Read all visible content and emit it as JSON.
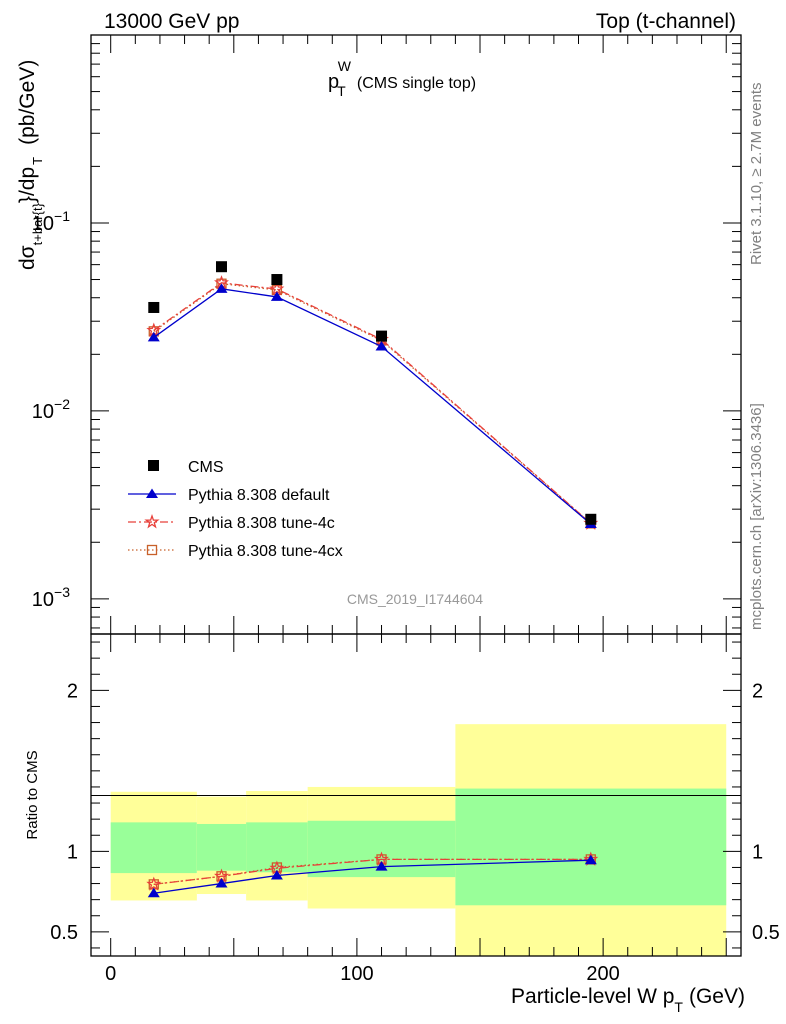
{
  "header": {
    "left": "13000 GeV pp",
    "right": "Top (t-channel)"
  },
  "side_labels": {
    "rivet": "Rivet 3.1.10, ≥ 2.7M events",
    "mcplots": "mcplots.cern.ch [arXiv:1306.3436]"
  },
  "chart_data": [
    {
      "type": "scatter",
      "panel": "main",
      "title": {
        "main": "p",
        "sub": "T",
        "sup": "W",
        "note": "(CMS single top)"
      },
      "ylabel": {
        "pre": "dσ",
        "sub1": "t+bar{t}",
        "mid": "}/dp",
        "sub2": "T",
        "post": "(pb/GeV)"
      },
      "yscale": "log",
      "ylim": [
        0.00065,
        1.0
      ],
      "xlim": [
        -8,
        256
      ],
      "y_ticks": [
        {
          "v": 0.1,
          "base": "10",
          "exp": "−1"
        },
        {
          "v": 0.01,
          "base": "10",
          "exp": "−2"
        },
        {
          "v": 0.001,
          "base": "10",
          "exp": "−3"
        }
      ],
      "watermark": "CMS_2019_I1744604",
      "legend_position": "lower-left",
      "series": [
        {
          "name": "CMS",
          "style": "data",
          "color": "#000000",
          "x": [
            17.5,
            45,
            67.5,
            110,
            195
          ],
          "y": [
            0.0355,
            0.0585,
            0.05,
            0.025,
            0.00265
          ]
        },
        {
          "name": "Pythia 8.308 default",
          "style": "triangle",
          "color": "#0000cc",
          "x": [
            17.5,
            45,
            67.5,
            110,
            195
          ],
          "y": [
            0.0246,
            0.0446,
            0.0404,
            0.022,
            0.0025
          ]
        },
        {
          "name": "Pythia 8.308 tune-4c",
          "style": "star",
          "color": "#e8403a",
          "x": [
            17.5,
            45,
            67.5,
            110,
            195
          ],
          "y": [
            0.0268,
            0.048,
            0.0445,
            0.024,
            0.00252
          ]
        },
        {
          "name": "Pythia 8.308 tune-4cx",
          "style": "square",
          "color": "#c8602a",
          "x": [
            17.5,
            45,
            67.5,
            110,
            195
          ],
          "y": [
            0.0265,
            0.0475,
            0.044,
            0.0237,
            0.00252
          ]
        }
      ]
    },
    {
      "type": "line",
      "panel": "ratio",
      "ylabel": "Ratio to CMS",
      "xlabel": {
        "pre": "Particle-level W p",
        "sub": "T",
        "post": "(GeV)"
      },
      "ylim": [
        0.35,
        2.35
      ],
      "xlim": [
        -8,
        256
      ],
      "x_ticks": [
        0,
        100,
        200
      ],
      "y_ticks": [
        {
          "v": 2,
          "label": "2"
        },
        {
          "v": 1,
          "label": "1"
        },
        {
          "v": 0.5,
          "label": "0.5"
        }
      ],
      "bands": [
        {
          "x0": 0,
          "x1": 35,
          "y1_lo": 0.865,
          "y1_hi": 1.18,
          "y2_lo": 0.695,
          "y2_hi": 1.37
        },
        {
          "x0": 35,
          "x1": 55,
          "y1_lo": 0.88,
          "y1_hi": 1.17,
          "y2_lo": 0.735,
          "y2_hi": 1.34
        },
        {
          "x0": 55,
          "x1": 80,
          "y1_lo": 0.87,
          "y1_hi": 1.18,
          "y2_lo": 0.695,
          "y2_hi": 1.375
        },
        {
          "x0": 80,
          "x1": 140,
          "y1_lo": 0.84,
          "y1_hi": 1.19,
          "y2_lo": 0.645,
          "y2_hi": 1.4
        },
        {
          "x0": 140,
          "x1": 250,
          "y1_lo": 0.665,
          "y1_hi": 1.39,
          "y2_lo": 0.0,
          "y2_hi": 1.79
        }
      ],
      "series": [
        {
          "name": "Pythia 8.308 default",
          "style": "triangle",
          "color": "#0000cc",
          "x": [
            17.5,
            45,
            67.5,
            110,
            195
          ],
          "y": [
            0.74,
            0.8,
            0.85,
            0.905,
            0.945
          ]
        },
        {
          "name": "Pythia 8.308 tune-4c",
          "style": "star",
          "color": "#e8403a",
          "x": [
            17.5,
            45,
            67.5,
            110,
            195
          ],
          "y": [
            0.795,
            0.845,
            0.895,
            0.95,
            0.95
          ]
        },
        {
          "name": "Pythia 8.308 tune-4cx",
          "style": "square",
          "color": "#c8602a",
          "x": [
            17.5,
            45,
            67.5,
            110,
            195
          ],
          "y": [
            0.795,
            0.845,
            0.9,
            0.95,
            0.95
          ]
        }
      ]
    }
  ]
}
